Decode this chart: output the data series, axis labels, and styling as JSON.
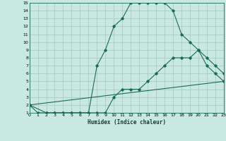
{
  "title": "",
  "xlabel": "Humidex (Indice chaleur)",
  "ylabel": "",
  "bg_color": "#c8e8e0",
  "grid_color": "#a8ccc8",
  "line_color": "#1a6b5a",
  "xmin": 0,
  "xmax": 23,
  "ymin": 1,
  "ymax": 15,
  "line1_x": [
    0,
    1,
    2,
    3,
    4,
    5,
    6,
    7,
    8,
    9,
    10,
    11,
    12,
    13,
    14,
    15,
    16,
    17,
    18,
    19,
    20,
    21,
    22,
    23
  ],
  "line1_y": [
    2,
    1,
    1,
    1,
    1,
    1,
    1,
    1,
    7,
    9,
    12,
    13,
    15,
    15,
    15,
    15,
    15,
    14,
    11,
    10,
    9,
    8,
    7,
    6
  ],
  "line2_x": [
    0,
    2,
    3,
    4,
    5,
    6,
    7,
    8,
    9,
    10,
    11,
    12,
    13,
    14,
    15,
    16,
    17,
    18,
    19,
    20,
    21,
    22,
    23
  ],
  "line2_y": [
    2,
    1,
    1,
    1,
    1,
    1,
    1,
    1,
    1,
    3,
    4,
    4,
    4,
    5,
    6,
    7,
    8,
    8,
    8,
    9,
    7,
    6,
    5
  ],
  "line3_x": [
    0,
    23
  ],
  "line3_y": [
    2,
    5
  ]
}
